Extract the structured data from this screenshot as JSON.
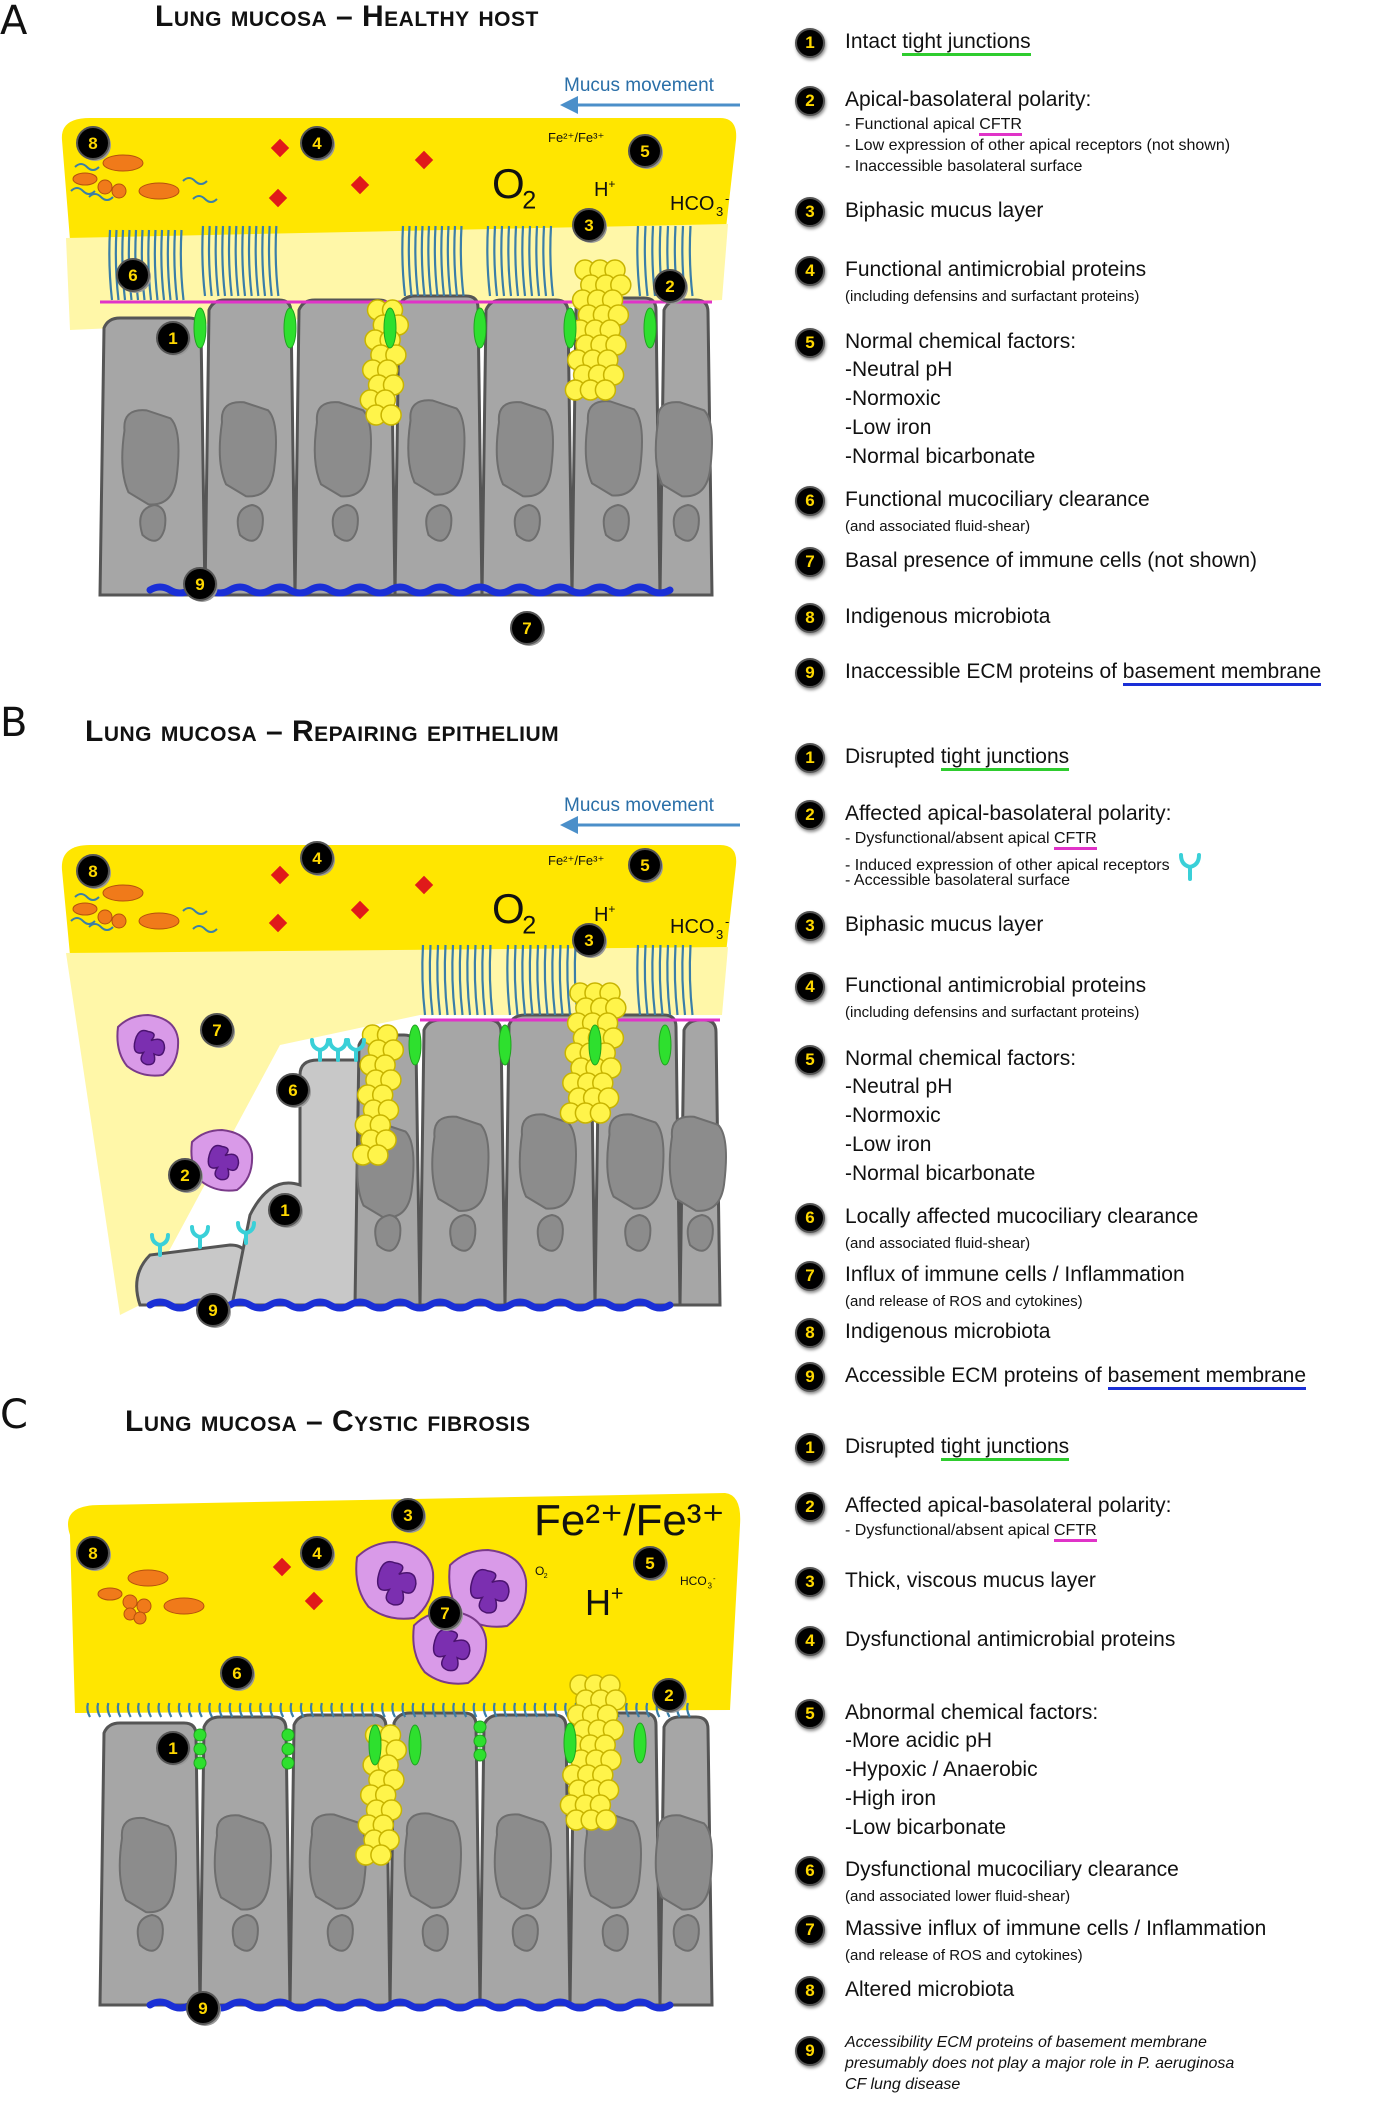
{
  "panels": [
    {
      "letter": "A",
      "title": "Lung mucosa – Healthy host",
      "diagram_labels": {
        "mucus_movement": "Mucus movement",
        "fe": "Fe²⁺/Fe³⁺",
        "o2": "O",
        "o2_sub": "2",
        "h": "H",
        "h_sup": "+",
        "hco3": "HCO",
        "hco3_sub": "3",
        "hco3_sup": "-"
      },
      "legend": [
        {
          "n": "1",
          "main": "Intact ",
          "main_u": "tight junctions",
          "u": "green"
        },
        {
          "n": "2",
          "main": "Apical-basolateral polarity:",
          "subs": [
            "- Functional apical ",
            "- Low expression of other apical receptors (not shown)",
            "- Inaccessible basolateral surface"
          ],
          "sub0_u": "CFTR"
        },
        {
          "n": "3",
          "main": "Biphasic mucus layer"
        },
        {
          "n": "4",
          "main": "Functional antimicrobial proteins",
          "small": "(including defensins and surfactant proteins)"
        },
        {
          "n": "5",
          "main": "Normal chemical factors:",
          "lines": [
            "-Neutral pH",
            "-Normoxic",
            "-Low iron",
            "-Normal bicarbonate"
          ]
        },
        {
          "n": "6",
          "main": "Functional mucociliary clearance",
          "small": "(and associated fluid-shear)"
        },
        {
          "n": "7",
          "main": "Basal presence of immune cells (not shown)"
        },
        {
          "n": "8",
          "main": "Indigenous microbiota"
        },
        {
          "n": "9",
          "main": "Inaccessible ECM proteins of ",
          "main_u": "basement membrane",
          "u": "blue"
        }
      ]
    },
    {
      "letter": "B",
      "title": "Lung mucosa – Repairing epithelium",
      "diagram_labels": {
        "mucus_movement": "Mucus movement",
        "fe": "Fe²⁺/Fe³⁺",
        "o2": "O",
        "o2_sub": "2",
        "h": "H",
        "h_sup": "+",
        "hco3": "HCO",
        "hco3_sub": "3",
        "hco3_sup": "-"
      },
      "legend": [
        {
          "n": "1",
          "main": "Disrupted ",
          "main_u": "tight junctions",
          "u": "green"
        },
        {
          "n": "2",
          "main": "Affected apical-basolateral polarity:",
          "subs": [
            "- Dysfunctional/absent apical ",
            "- Induced expression of other apical receptors",
            "- Accessible basolateral surface"
          ],
          "sub0_u": "CFTR"
        },
        {
          "n": "3",
          "main": "Biphasic mucus layer"
        },
        {
          "n": "4",
          "main": "Functional antimicrobial proteins",
          "small": "(including defensins and surfactant proteins)"
        },
        {
          "n": "5",
          "main": "Normal chemical factors:",
          "lines": [
            "-Neutral pH",
            "-Normoxic",
            "-Low iron",
            "-Normal bicarbonate"
          ]
        },
        {
          "n": "6",
          "main": "Locally affected mucociliary clearance",
          "small": "(and associated fluid-shear)"
        },
        {
          "n": "7",
          "main": "Influx of immune cells / Inflammation",
          "small": "(and release of ROS and cytokines)"
        },
        {
          "n": "8",
          "main": "Indigenous microbiota"
        },
        {
          "n": "9",
          "main": "Accessible ECM proteins of ",
          "main_u": "basement membrane",
          "u": "blue"
        }
      ]
    },
    {
      "letter": "C",
      "title": "Lung mucosa – Cystic fibrosis",
      "diagram_labels": {
        "fe_big": "Fe²⁺/Fe³⁺",
        "o2": "O",
        "o2_sub": "2",
        "h": "H",
        "h_sup": "+",
        "hco3": "HCO",
        "hco3_sub": "3",
        "hco3_sup": "-"
      },
      "legend": [
        {
          "n": "1",
          "main": "Disrupted ",
          "main_u": "tight junctions",
          "u": "green"
        },
        {
          "n": "2",
          "main": "Affected apical-basolateral polarity:",
          "subs": [
            "- Dysfunctional/absent apical "
          ],
          "sub0_u": "CFTR"
        },
        {
          "n": "3",
          "main": "Thick, viscous mucus layer"
        },
        {
          "n": "4",
          "main": "Dysfunctional antimicrobial proteins"
        },
        {
          "n": "5",
          "main": "Abnormal chemical factors:",
          "lines": [
            "-More acidic pH",
            "-Hypoxic / Anaerobic",
            "-High iron",
            "-Low bicarbonate"
          ]
        },
        {
          "n": "6",
          "main": "Dysfunctional mucociliary clearance",
          "small": "(and associated lower fluid-shear)"
        },
        {
          "n": "7",
          "main": "Massive influx of immune cells / Inflammation",
          "small": "(and release of ROS and cytokines)"
        },
        {
          "n": "8",
          "main": "Altered microbiota"
        },
        {
          "n": "9",
          "italic_lines": [
            "Accessibility ECM proteins of basement membrane",
            "presumably does not play a major role in P. aeruginosa",
            "CF lung disease"
          ]
        }
      ]
    }
  ],
  "colors": {
    "mucus": "#ffe600",
    "periciliary": "#fff7a8",
    "cell": "#a6a6a6",
    "cell_edge": "#555555",
    "tight_junction": "#2ee02e",
    "basement": "#1a2fd6",
    "cftr": "#e033c8",
    "cilia": "#3a7ea8",
    "bacteria": "#f07a1a",
    "amp": "#e01a1a",
    "goblet": "#fff44a",
    "immune": "#d99ae8",
    "receptor": "#3ad0d8",
    "arrow": "#4b8fc9"
  }
}
